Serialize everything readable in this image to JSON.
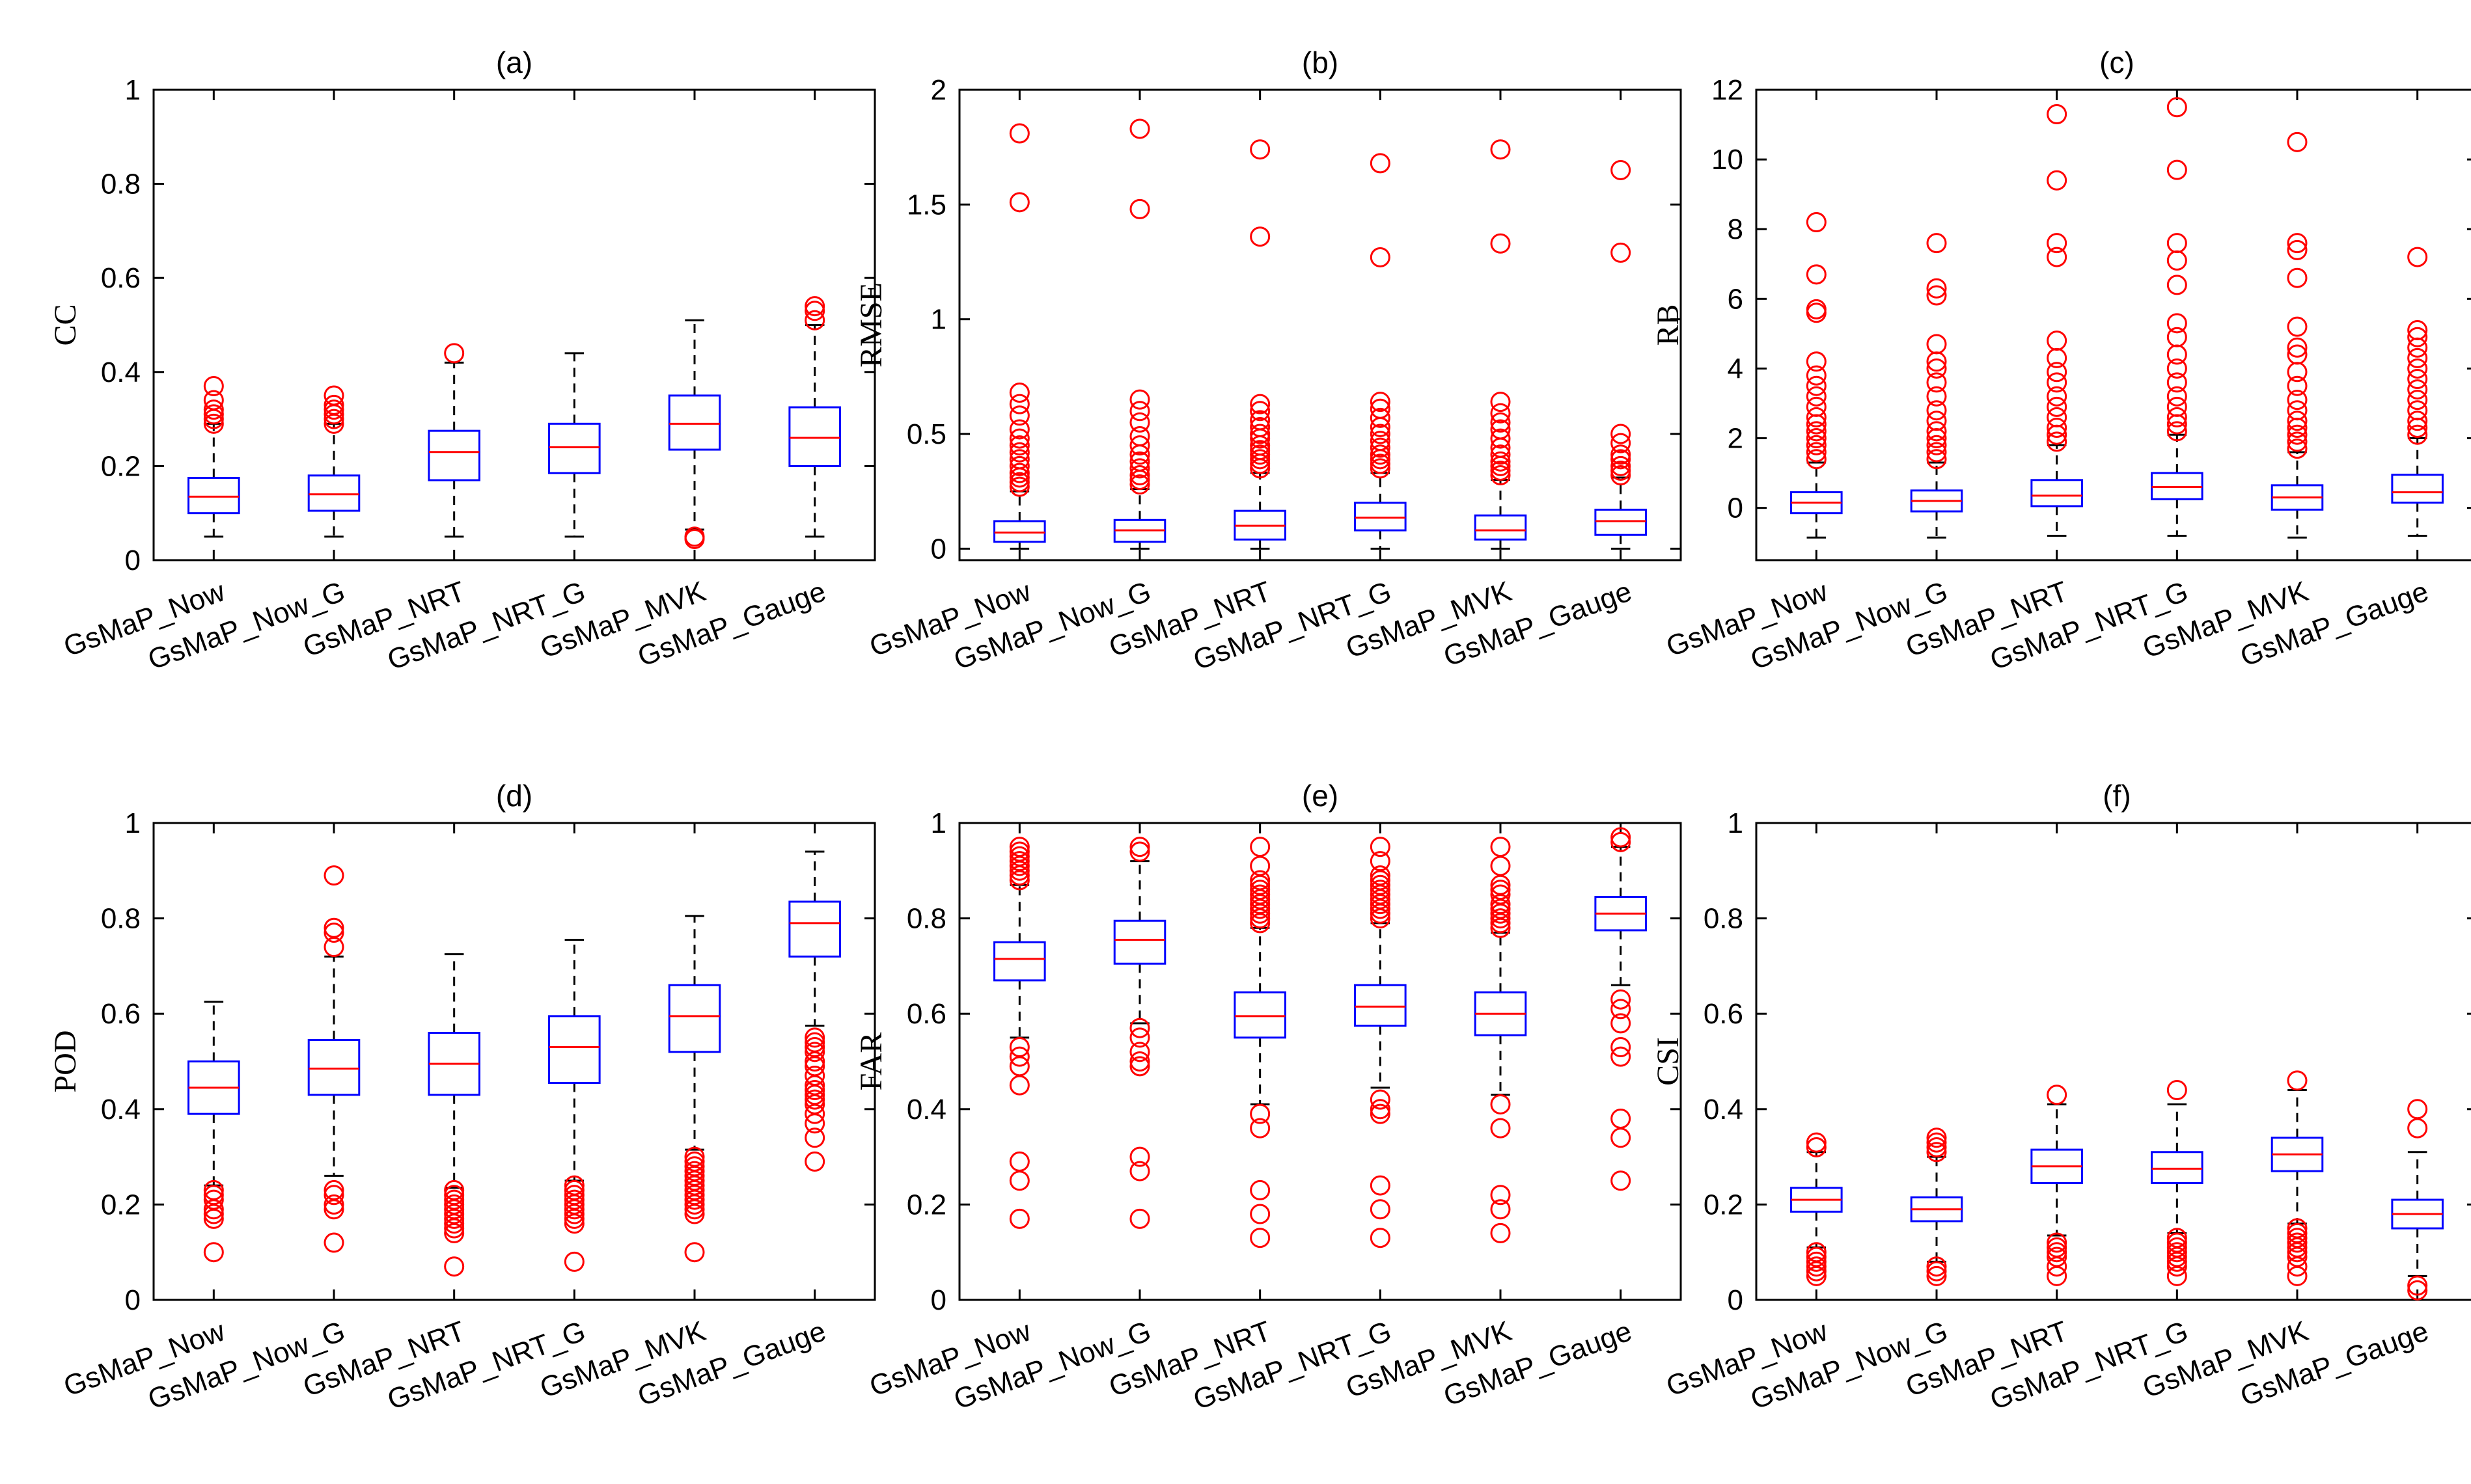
{
  "figure": {
    "categories": [
      "GsMaP_Now",
      "GsMaP_Now_G",
      "GsMaP_NRT",
      "GsMaP_NRT_G",
      "GsMaP_MVK",
      "GsMaP_Gauge"
    ],
    "colors": {
      "box": "#0000ff",
      "median": "#ff0000",
      "outlier": "#ff0000",
      "whisker": "#000000",
      "axis": "#000000"
    }
  },
  "chart_data": [
    {
      "id": "a",
      "type": "boxplot",
      "title": "(a)",
      "ylabel": "CC",
      "ylim": [
        0,
        1
      ],
      "ticks": [
        0,
        0.2,
        0.4,
        0.6,
        0.8,
        1
      ],
      "tick_labels": [
        "0",
        "0.2",
        "0.4",
        "0.6",
        "0.8",
        "1"
      ],
      "boxes": [
        {
          "q1": 0.1,
          "median": 0.135,
          "q3": 0.175,
          "lo": 0.05,
          "hi": 0.29,
          "outliers": [
            0.29,
            0.3,
            0.31,
            0.32,
            0.34,
            0.37
          ]
        },
        {
          "q1": 0.105,
          "median": 0.14,
          "q3": 0.18,
          "lo": 0.05,
          "hi": 0.29,
          "outliers": [
            0.29,
            0.3,
            0.31,
            0.32,
            0.33,
            0.35
          ]
        },
        {
          "q1": 0.17,
          "median": 0.23,
          "q3": 0.275,
          "lo": 0.05,
          "hi": 0.42,
          "outliers": [
            0.44
          ]
        },
        {
          "q1": 0.185,
          "median": 0.24,
          "q3": 0.29,
          "lo": 0.05,
          "hi": 0.44,
          "outliers": []
        },
        {
          "q1": 0.235,
          "median": 0.29,
          "q3": 0.35,
          "lo": 0.065,
          "hi": 0.51,
          "outliers": [
            0.045,
            0.05
          ]
        },
        {
          "q1": 0.2,
          "median": 0.26,
          "q3": 0.325,
          "lo": 0.05,
          "hi": 0.5,
          "outliers": [
            0.51,
            0.53,
            0.54
          ]
        }
      ]
    },
    {
      "id": "b",
      "type": "boxplot",
      "title": "(b)",
      "ylabel": "RMSE",
      "ylim": [
        -0.05,
        2
      ],
      "ticks": [
        0,
        0.5,
        1,
        1.5,
        2
      ],
      "tick_labels": [
        "0",
        "0.5",
        "1",
        "1.5",
        "2"
      ],
      "boxes": [
        {
          "q1": 0.03,
          "median": 0.07,
          "q3": 0.12,
          "lo": 0.0,
          "hi": 0.25,
          "outliers": [
            0.27,
            0.29,
            0.31,
            0.33,
            0.36,
            0.39,
            0.42,
            0.45,
            0.48,
            0.52,
            0.58,
            0.63,
            0.68,
            1.51,
            1.81
          ]
        },
        {
          "q1": 0.03,
          "median": 0.08,
          "q3": 0.125,
          "lo": 0.0,
          "hi": 0.26,
          "outliers": [
            0.28,
            0.3,
            0.32,
            0.35,
            0.38,
            0.41,
            0.45,
            0.49,
            0.55,
            0.6,
            0.65,
            1.48,
            1.83
          ]
        },
        {
          "q1": 0.04,
          "median": 0.1,
          "q3": 0.165,
          "lo": 0.0,
          "hi": 0.33,
          "outliers": [
            0.35,
            0.37,
            0.39,
            0.41,
            0.43,
            0.45,
            0.48,
            0.5,
            0.53,
            0.56,
            0.6,
            0.63,
            1.36,
            1.74
          ]
        },
        {
          "q1": 0.08,
          "median": 0.135,
          "q3": 0.2,
          "lo": 0.0,
          "hi": 0.33,
          "outliers": [
            0.35,
            0.37,
            0.39,
            0.41,
            0.44,
            0.47,
            0.5,
            0.53,
            0.57,
            0.61,
            0.64,
            1.27,
            1.68
          ]
        },
        {
          "q1": 0.04,
          "median": 0.08,
          "q3": 0.145,
          "lo": 0.0,
          "hi": 0.3,
          "outliers": [
            0.32,
            0.34,
            0.36,
            0.38,
            0.41,
            0.44,
            0.48,
            0.52,
            0.55,
            0.59,
            0.64,
            1.33,
            1.74
          ]
        },
        {
          "q1": 0.06,
          "median": 0.12,
          "q3": 0.17,
          "lo": 0.0,
          "hi": 0.31,
          "outliers": [
            0.32,
            0.34,
            0.36,
            0.39,
            0.41,
            0.46,
            0.5,
            1.29,
            1.65
          ]
        }
      ]
    },
    {
      "id": "c",
      "type": "boxplot",
      "title": "(c)",
      "ylabel": "RB",
      "ylim": [
        -1.5,
        12
      ],
      "ticks": [
        0,
        2,
        4,
        6,
        8,
        10,
        12
      ],
      "tick_labels": [
        "0",
        "2",
        "4",
        "6",
        "8",
        "10",
        "12"
      ],
      "boxes": [
        {
          "q1": -0.15,
          "median": 0.15,
          "q3": 0.45,
          "lo": -0.85,
          "hi": 1.3,
          "outliers": [
            1.4,
            1.6,
            1.8,
            2.0,
            2.2,
            2.4,
            2.6,
            2.9,
            3.2,
            3.5,
            3.8,
            4.2,
            5.6,
            5.7,
            6.7,
            8.2
          ]
        },
        {
          "q1": -0.1,
          "median": 0.2,
          "q3": 0.5,
          "lo": -0.85,
          "hi": 1.3,
          "outliers": [
            1.4,
            1.6,
            1.8,
            2.0,
            2.2,
            2.5,
            2.8,
            3.2,
            3.6,
            4.0,
            4.2,
            4.7,
            6.1,
            6.3,
            7.6
          ]
        },
        {
          "q1": 0.05,
          "median": 0.35,
          "q3": 0.8,
          "lo": -0.8,
          "hi": 1.8,
          "outliers": [
            1.9,
            2.1,
            2.3,
            2.6,
            2.9,
            3.2,
            3.6,
            3.9,
            4.3,
            4.8,
            7.2,
            7.6,
            9.4,
            11.3
          ]
        },
        {
          "q1": 0.25,
          "median": 0.6,
          "q3": 1.0,
          "lo": -0.8,
          "hi": 2.1,
          "outliers": [
            2.2,
            2.4,
            2.6,
            2.9,
            3.2,
            3.6,
            4.0,
            4.4,
            4.9,
            5.3,
            6.4,
            7.1,
            7.6,
            9.7,
            11.5
          ]
        },
        {
          "q1": -0.05,
          "median": 0.3,
          "q3": 0.65,
          "lo": -0.85,
          "hi": 1.6,
          "outliers": [
            1.7,
            1.9,
            2.1,
            2.3,
            2.5,
            2.8,
            3.1,
            3.5,
            3.9,
            4.4,
            4.6,
            5.2,
            6.6,
            7.4,
            7.6,
            10.5
          ]
        },
        {
          "q1": 0.15,
          "median": 0.45,
          "q3": 0.95,
          "lo": -0.8,
          "hi": 2.0,
          "outliers": [
            2.1,
            2.3,
            2.5,
            2.8,
            3.1,
            3.4,
            3.7,
            4.0,
            4.3,
            4.6,
            4.9,
            5.1,
            7.2
          ]
        }
      ]
    },
    {
      "id": "d",
      "type": "boxplot",
      "title": "(d)",
      "ylabel": "POD",
      "ylim": [
        0,
        1
      ],
      "ticks": [
        0,
        0.2,
        0.4,
        0.6,
        0.8,
        1
      ],
      "tick_labels": [
        "0",
        "0.2",
        "0.4",
        "0.6",
        "0.8",
        "1"
      ],
      "boxes": [
        {
          "q1": 0.39,
          "median": 0.445,
          "q3": 0.5,
          "lo": 0.24,
          "hi": 0.625,
          "outliers": [
            0.1,
            0.17,
            0.18,
            0.19,
            0.21,
            0.22,
            0.23
          ]
        },
        {
          "q1": 0.43,
          "median": 0.485,
          "q3": 0.545,
          "lo": 0.26,
          "hi": 0.72,
          "outliers": [
            0.12,
            0.19,
            0.2,
            0.22,
            0.23,
            0.74,
            0.77,
            0.78,
            0.89
          ]
        },
        {
          "q1": 0.43,
          "median": 0.495,
          "q3": 0.56,
          "lo": 0.235,
          "hi": 0.725,
          "outliers": [
            0.07,
            0.14,
            0.15,
            0.16,
            0.17,
            0.18,
            0.19,
            0.2,
            0.21,
            0.22,
            0.23
          ]
        },
        {
          "q1": 0.455,
          "median": 0.53,
          "q3": 0.595,
          "lo": 0.25,
          "hi": 0.755,
          "outliers": [
            0.08,
            0.16,
            0.17,
            0.18,
            0.19,
            0.2,
            0.21,
            0.22,
            0.23,
            0.24
          ]
        },
        {
          "q1": 0.52,
          "median": 0.595,
          "q3": 0.66,
          "lo": 0.315,
          "hi": 0.805,
          "outliers": [
            0.1,
            0.18,
            0.19,
            0.2,
            0.21,
            0.22,
            0.23,
            0.24,
            0.25,
            0.26,
            0.27,
            0.28,
            0.29,
            0.3
          ]
        },
        {
          "q1": 0.72,
          "median": 0.79,
          "q3": 0.835,
          "lo": 0.575,
          "hi": 0.94,
          "outliers": [
            0.29,
            0.34,
            0.37,
            0.39,
            0.41,
            0.42,
            0.43,
            0.44,
            0.45,
            0.47,
            0.49,
            0.5,
            0.52,
            0.53,
            0.54,
            0.55
          ]
        }
      ]
    },
    {
      "id": "e",
      "type": "boxplot",
      "title": "(e)",
      "ylabel": "FAR",
      "ylim": [
        0,
        1
      ],
      "ticks": [
        0,
        0.2,
        0.4,
        0.6,
        0.8,
        1
      ],
      "tick_labels": [
        "0",
        "0.2",
        "0.4",
        "0.6",
        "0.8",
        "1"
      ],
      "boxes": [
        {
          "q1": 0.67,
          "median": 0.715,
          "q3": 0.75,
          "lo": 0.55,
          "hi": 0.87,
          "outliers": [
            0.17,
            0.25,
            0.29,
            0.45,
            0.49,
            0.51,
            0.53,
            0.88,
            0.89,
            0.9,
            0.91,
            0.92,
            0.93,
            0.94,
            0.95
          ]
        },
        {
          "q1": 0.705,
          "median": 0.755,
          "q3": 0.795,
          "lo": 0.58,
          "hi": 0.92,
          "outliers": [
            0.17,
            0.27,
            0.3,
            0.49,
            0.5,
            0.52,
            0.55,
            0.57,
            0.94,
            0.95
          ]
        },
        {
          "q1": 0.55,
          "median": 0.595,
          "q3": 0.645,
          "lo": 0.41,
          "hi": 0.78,
          "outliers": [
            0.13,
            0.18,
            0.23,
            0.36,
            0.39,
            0.79,
            0.8,
            0.81,
            0.82,
            0.83,
            0.84,
            0.85,
            0.86,
            0.87,
            0.88,
            0.91,
            0.95
          ]
        },
        {
          "q1": 0.575,
          "median": 0.615,
          "q3": 0.66,
          "lo": 0.445,
          "hi": 0.79,
          "outliers": [
            0.13,
            0.19,
            0.24,
            0.39,
            0.4,
            0.42,
            0.8,
            0.81,
            0.82,
            0.83,
            0.84,
            0.85,
            0.86,
            0.87,
            0.88,
            0.89,
            0.92,
            0.95
          ]
        },
        {
          "q1": 0.555,
          "median": 0.6,
          "q3": 0.645,
          "lo": 0.43,
          "hi": 0.77,
          "outliers": [
            0.14,
            0.19,
            0.22,
            0.36,
            0.41,
            0.78,
            0.79,
            0.8,
            0.81,
            0.82,
            0.83,
            0.85,
            0.86,
            0.87,
            0.91,
            0.95
          ]
        },
        {
          "q1": 0.775,
          "median": 0.81,
          "q3": 0.845,
          "lo": 0.66,
          "hi": 0.95,
          "outliers": [
            0.25,
            0.34,
            0.38,
            0.51,
            0.53,
            0.58,
            0.61,
            0.63,
            0.96,
            0.97
          ]
        }
      ]
    },
    {
      "id": "f",
      "type": "boxplot",
      "title": "(f)",
      "ylabel": "CSI",
      "ylim": [
        0,
        1
      ],
      "ticks": [
        0,
        0.2,
        0.4,
        0.6,
        0.8,
        1
      ],
      "tick_labels": [
        "0",
        "0.2",
        "0.4",
        "0.6",
        "0.8",
        "1"
      ],
      "boxes": [
        {
          "q1": 0.185,
          "median": 0.21,
          "q3": 0.235,
          "lo": 0.11,
          "hi": 0.31,
          "outliers": [
            0.05,
            0.06,
            0.07,
            0.08,
            0.09,
            0.1,
            0.32,
            0.33
          ]
        },
        {
          "q1": 0.165,
          "median": 0.19,
          "q3": 0.215,
          "lo": 0.08,
          "hi": 0.3,
          "outliers": [
            0.05,
            0.06,
            0.07,
            0.31,
            0.32,
            0.33,
            0.34
          ]
        },
        {
          "q1": 0.245,
          "median": 0.28,
          "q3": 0.315,
          "lo": 0.135,
          "hi": 0.41,
          "outliers": [
            0.05,
            0.07,
            0.09,
            0.1,
            0.11,
            0.12,
            0.43
          ]
        },
        {
          "q1": 0.245,
          "median": 0.275,
          "q3": 0.31,
          "lo": 0.14,
          "hi": 0.41,
          "outliers": [
            0.05,
            0.07,
            0.08,
            0.09,
            0.1,
            0.11,
            0.12,
            0.13,
            0.44
          ]
        },
        {
          "q1": 0.27,
          "median": 0.305,
          "q3": 0.34,
          "lo": 0.16,
          "hi": 0.44,
          "outliers": [
            0.05,
            0.07,
            0.09,
            0.1,
            0.11,
            0.12,
            0.13,
            0.14,
            0.15,
            0.46
          ]
        },
        {
          "q1": 0.15,
          "median": 0.18,
          "q3": 0.21,
          "lo": 0.05,
          "hi": 0.31,
          "outliers": [
            0.02,
            0.03,
            0.36,
            0.4
          ]
        }
      ]
    }
  ]
}
